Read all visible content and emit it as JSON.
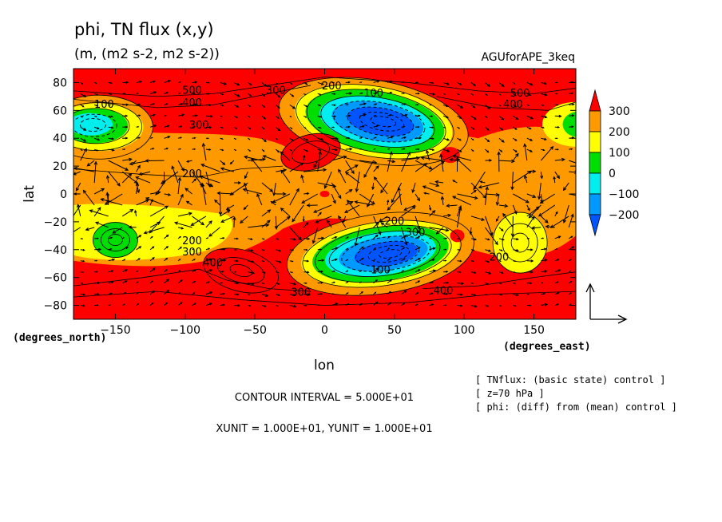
{
  "chart_data": {
    "type": "heatmap",
    "title": "phi, TN flux (x,y)",
    "subtitle": "(m, (m2 s-2, m2 s-2))",
    "experiment": "AGUforAPE_3keq",
    "xlabel": "lon",
    "ylabel": "lat",
    "xunit_label": "(degrees_east)",
    "yunit_label": "(degrees_north)",
    "xlim": [
      -180,
      180
    ],
    "ylim": [
      -90,
      90
    ],
    "x_ticks": [
      -150,
      -100,
      -50,
      0,
      50,
      100,
      150
    ],
    "y_ticks": [
      -80,
      -60,
      -40,
      -20,
      0,
      20,
      40,
      60,
      80
    ],
    "colorbar": {
      "levels": [
        300,
        200,
        100,
        0,
        -100,
        -200
      ],
      "colors": [
        "#ff0000",
        "#ff9900",
        "#ffff00",
        "#00dd00",
        "#00eeee",
        "#0099ff",
        "#0055ff"
      ]
    },
    "features": [
      {
        "type": "low",
        "lon": 35,
        "lat": 52,
        "value": -200
      },
      {
        "type": "low",
        "lon": 40,
        "lat": -43,
        "value": -200
      },
      {
        "type": "low",
        "lon": -165,
        "lat": 50,
        "value": 0
      },
      {
        "type": "low",
        "lon": 180,
        "lat": 50,
        "value": 50
      },
      {
        "type": "low",
        "lon": -150,
        "lat": -32,
        "value": 50
      },
      {
        "type": "low",
        "lon": 140,
        "lat": -35,
        "value": 100
      },
      {
        "type": "high",
        "lon": -10,
        "lat": 30,
        "value": 320
      },
      {
        "type": "high",
        "lon": -60,
        "lat": -55,
        "value": 320
      },
      {
        "type": "high",
        "lon": 90,
        "lat": 28,
        "value": 310
      },
      {
        "type": "high",
        "lon": 95,
        "lat": -30,
        "value": 310
      },
      {
        "type": "high",
        "lon": 0,
        "lat": 0,
        "value": 305
      }
    ],
    "contour_labels": [
      {
        "text": "500",
        "lon": -95,
        "lat": 72
      },
      {
        "text": "400",
        "lon": -95,
        "lat": 63
      },
      {
        "text": "300",
        "lon": -90,
        "lat": 47
      },
      {
        "text": "100",
        "lon": -158,
        "lat": 62
      },
      {
        "text": "200",
        "lon": -95,
        "lat": 12
      },
      {
        "text": "300",
        "lon": -35,
        "lat": 72
      },
      {
        "text": "200",
        "lon": 5,
        "lat": 75
      },
      {
        "text": "100",
        "lon": 35,
        "lat": 70
      },
      {
        "text": "500",
        "lon": 140,
        "lat": 70
      },
      {
        "text": "400",
        "lon": 135,
        "lat": 62
      },
      {
        "text": "200",
        "lon": 50,
        "lat": -22
      },
      {
        "text": "300",
        "lon": 65,
        "lat": -30
      },
      {
        "text": "100",
        "lon": 40,
        "lat": -57
      },
      {
        "text": "200",
        "lon": -95,
        "lat": -36
      },
      {
        "text": "300",
        "lon": -95,
        "lat": -44
      },
      {
        "text": "400",
        "lon": -80,
        "lat": -52
      },
      {
        "text": "300",
        "lon": -17,
        "lat": -73
      },
      {
        "text": "400",
        "lon": 85,
        "lat": -72
      },
      {
        "text": "200",
        "lon": 125,
        "lat": -48
      }
    ],
    "vector_reference": {
      "xunit": "1.000E+01",
      "yunit": "1.000E+01"
    }
  },
  "footer": {
    "contour_interval": "CONTOUR INTERVAL = 5.000E+01",
    "units": "XUNIT = 1.000E+01, YUNIT = 1.000E+01",
    "notes": [
      "[ TNflux: (basic state) control ]",
      "[ z=70 hPa ]",
      "[ phi: (diff) from (mean) control ]"
    ]
  }
}
